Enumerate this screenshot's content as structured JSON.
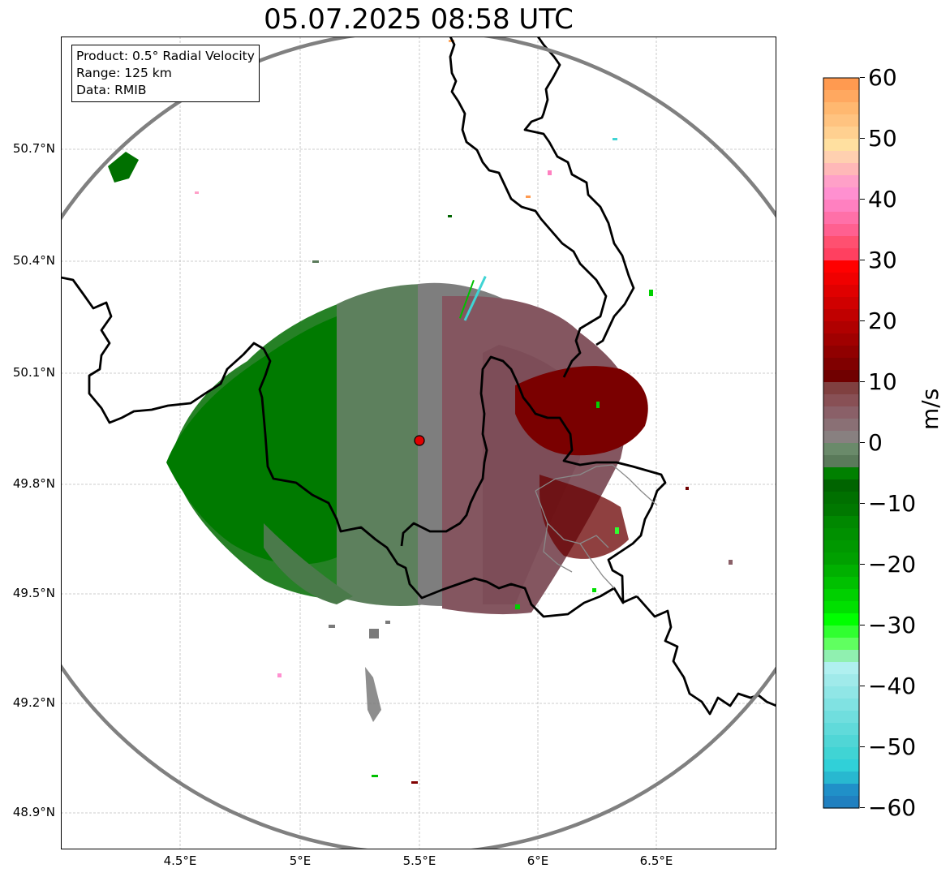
{
  "title": "05.07.2025 08:58 UTC",
  "info": {
    "product": "Product: 0.5° Radial Velocity",
    "range": "Range: 125 km",
    "data": "Data: RMIB"
  },
  "lat_labels": [
    "50.7°N",
    "50.4°N",
    "50.1°N",
    "49.8°N",
    "49.5°N",
    "49.2°N",
    "48.9°N"
  ],
  "lon_labels": [
    "4.5°E",
    "5°E",
    "5.5°E",
    "6°E",
    "6.5°E"
  ],
  "colorbar": {
    "label": "m/s",
    "ticks": [
      "60",
      "50",
      "40",
      "30",
      "20",
      "10",
      "0",
      "−10",
      "−20",
      "−30",
      "−40",
      "−50",
      "−60"
    ],
    "range": [
      -60,
      60
    ],
    "colors_top_to_bottom": [
      "#ff9a50",
      "#ffa860",
      "#ffb870",
      "#ffc380",
      "#ffd090",
      "#ffe0a0",
      "#ffd0b0",
      "#ffb8b8",
      "#ffa0c8",
      "#ff90d0",
      "#ff80c0",
      "#ff70a8",
      "#ff6090",
      "#ff5070",
      "#ff4060",
      "#ff0000",
      "#f00000",
      "#e00000",
      "#d00000",
      "#c00000",
      "#b00000",
      "#a00000",
      "#900000",
      "#800000",
      "#700000",
      "#804040",
      "#885055",
      "#8a6068",
      "#8a7075",
      "#888080",
      "#6a8a6a",
      "#5a7a5a",
      "#008000",
      "#006400",
      "#007000",
      "#007800",
      "#008800",
      "#009000",
      "#009800",
      "#00a000",
      "#00b000",
      "#00c000",
      "#00d000",
      "#00e000",
      "#00ff00",
      "#30ff30",
      "#60ff60",
      "#90f0b0",
      "#b0f0f0",
      "#a0eaea",
      "#90e6e6",
      "#80e2e2",
      "#70dede",
      "#60dada",
      "#50d6d6",
      "#40d4d4",
      "#30d0d8",
      "#28b8d0",
      "#2090c8",
      "#2080c0"
    ]
  },
  "colors": {
    "range_ring": "#808080",
    "border": "#000000",
    "grid": "#bdbdbd",
    "radar_marker": "#e00000"
  }
}
